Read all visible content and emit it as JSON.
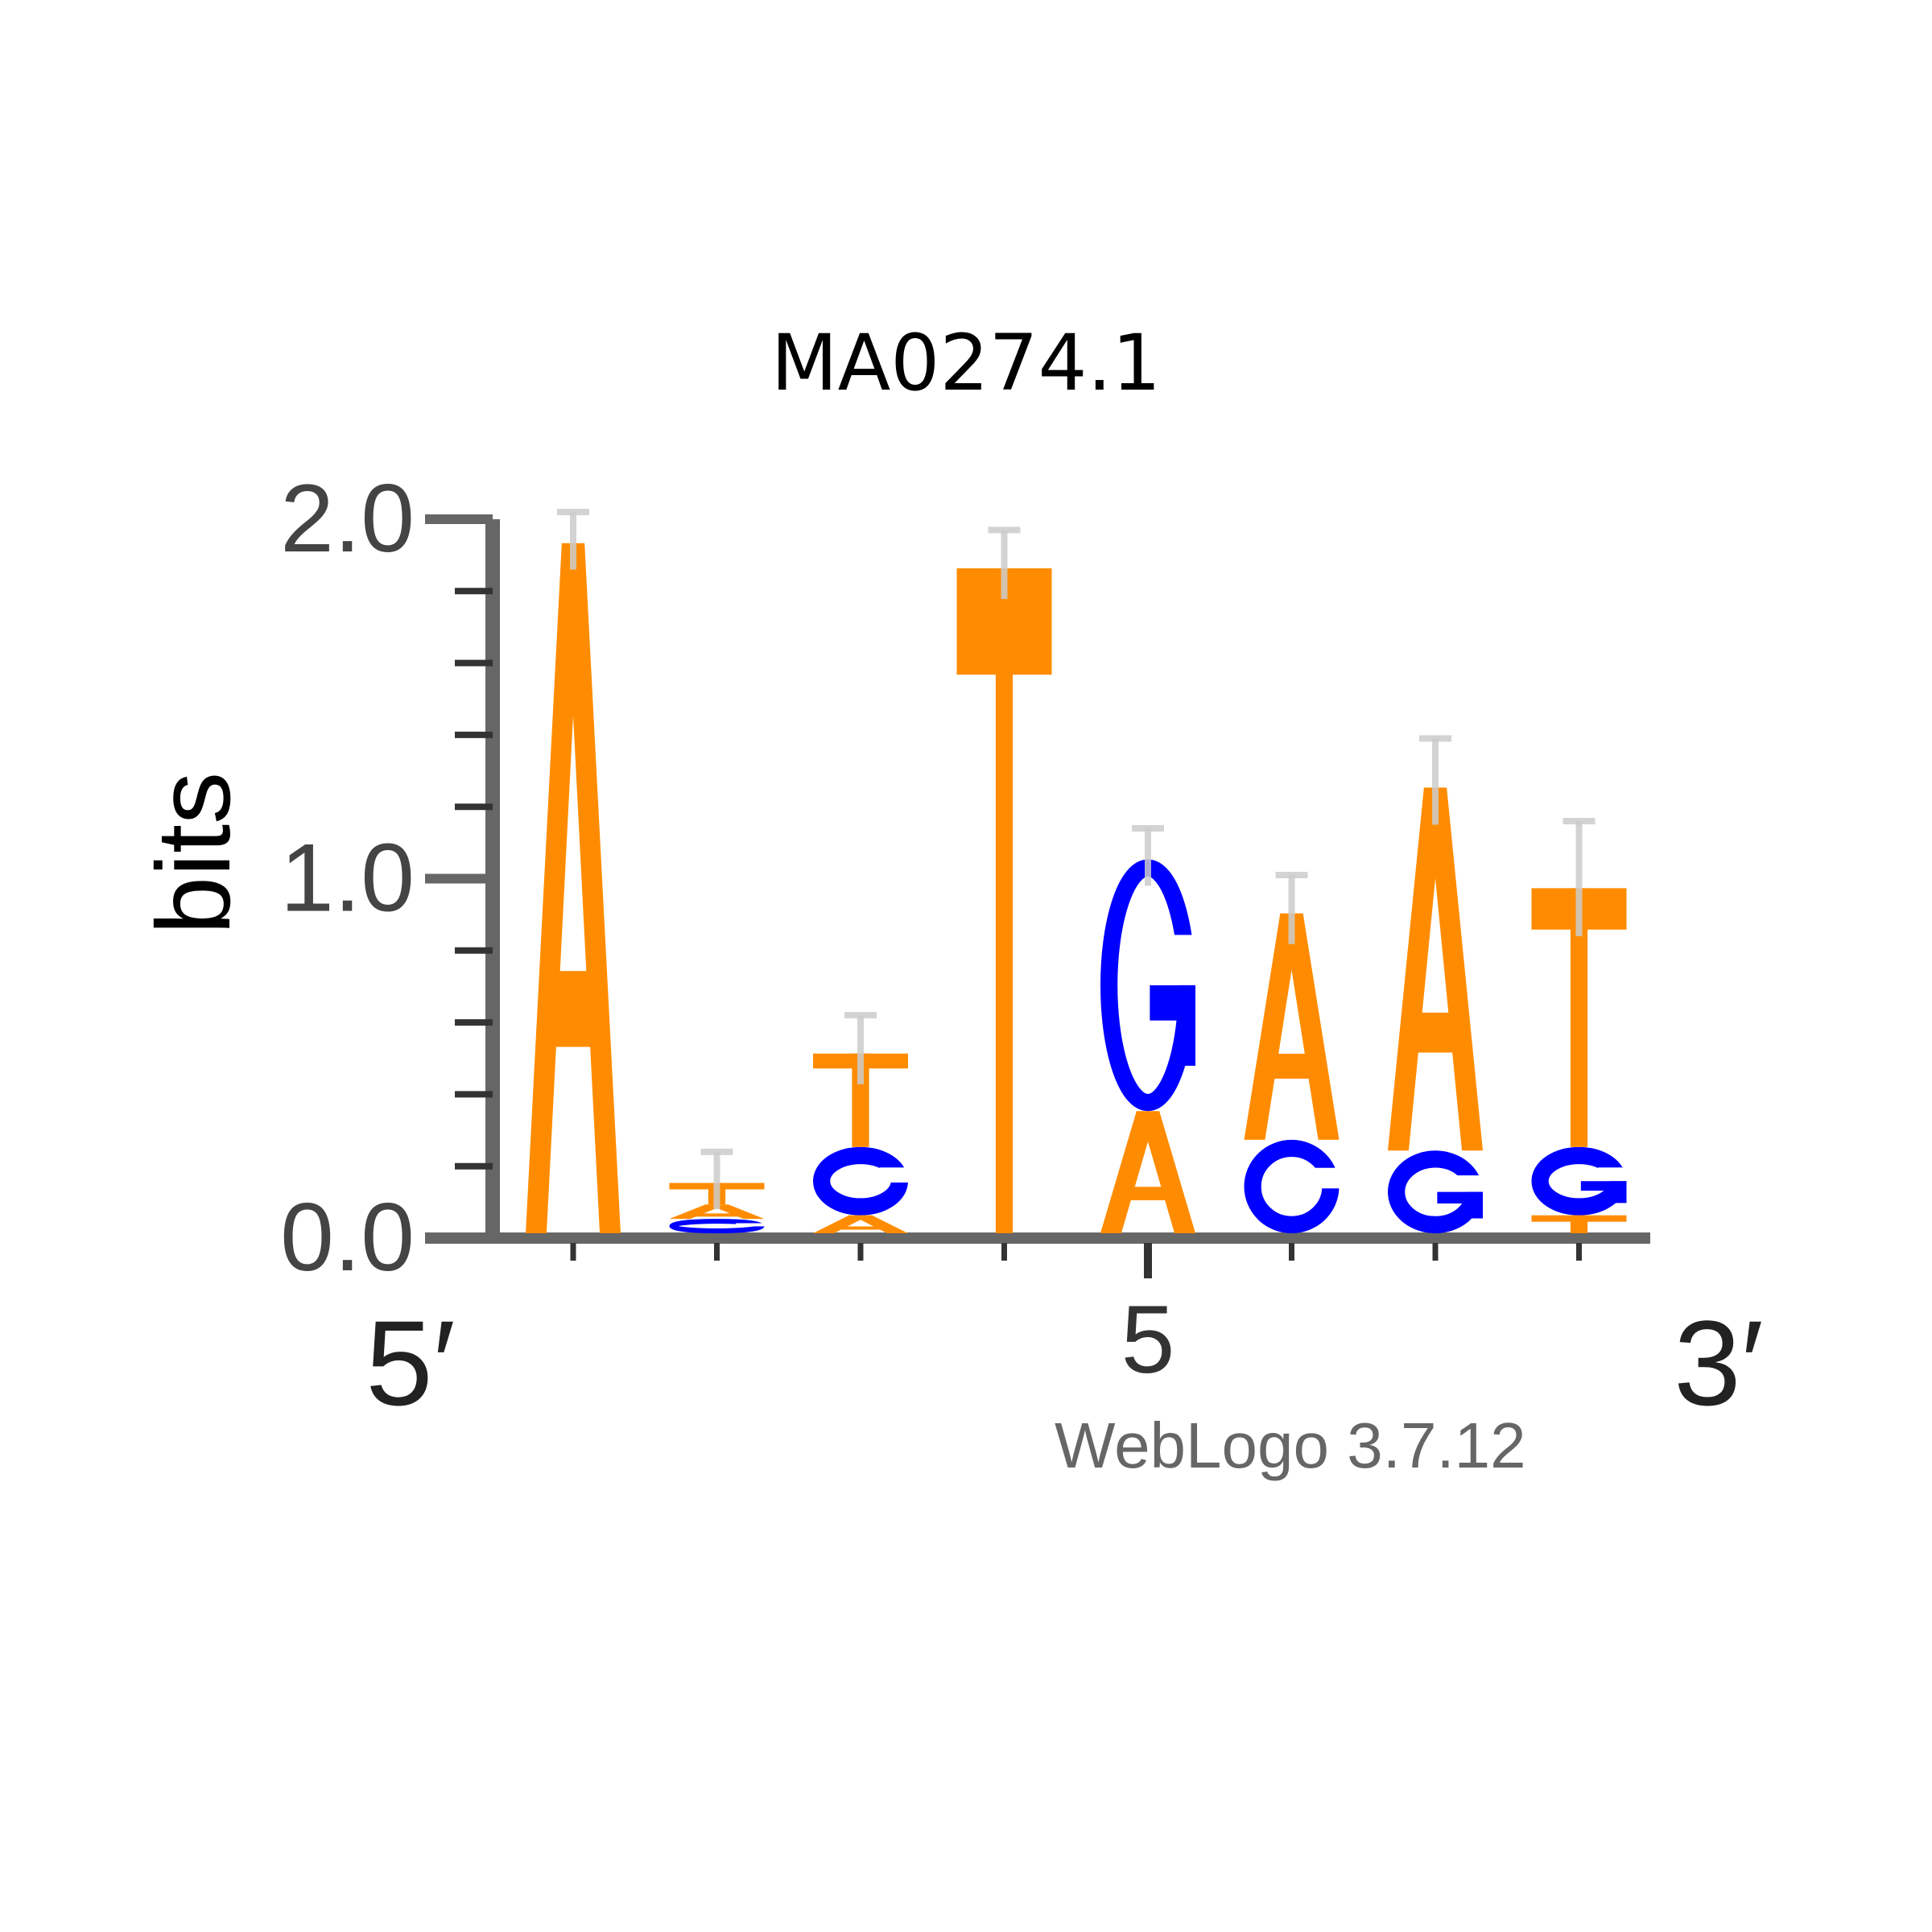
{
  "title": "MA0274.1",
  "credit": "WebLogo 3.7.12",
  "colors": {
    "A": "#ff8c00",
    "C": "#0000ff",
    "G": "#0000ff",
    "T": "#ff8c00",
    "axis": "#666666",
    "errorbar": "#cccccc"
  },
  "chart_data": {
    "type": "sequence-logo",
    "title": "MA0274.1",
    "ylabel": "bits",
    "ylim": [
      0,
      2
    ],
    "yticks": [
      "0.0",
      "1.0",
      "2.0"
    ],
    "x_start_label": "5′",
    "x_end_label": "3′",
    "x_labeled_tick": "5",
    "positions": [
      {
        "pos": 1,
        "letters": [
          {
            "base": "A",
            "bits": 1.92
          }
        ],
        "error": 0.1
      },
      {
        "pos": 2,
        "letters": [
          {
            "base": "C",
            "bits": 0.04
          },
          {
            "base": "A",
            "bits": 0.04
          },
          {
            "base": "T",
            "bits": 0.06
          }
        ],
        "error": 0.1
      },
      {
        "pos": 3,
        "letters": [
          {
            "base": "A",
            "bits": 0.05
          },
          {
            "base": "C",
            "bits": 0.19
          },
          {
            "base": "T",
            "bits": 0.26
          }
        ],
        "error": 0.12
      },
      {
        "pos": 4,
        "letters": [
          {
            "base": "T",
            "bits": 1.85
          }
        ],
        "error": 0.12
      },
      {
        "pos": 5,
        "letters": [
          {
            "base": "A",
            "bits": 0.34
          },
          {
            "base": "G",
            "bits": 0.7
          }
        ],
        "error": 0.1
      },
      {
        "pos": 6,
        "letters": [
          {
            "base": "C",
            "bits": 0.26
          },
          {
            "base": "A",
            "bits": 0.63
          }
        ],
        "error": 0.12
      },
      {
        "pos": 7,
        "letters": [
          {
            "base": "G",
            "bits": 0.23
          },
          {
            "base": "A",
            "bits": 1.01
          }
        ],
        "error": 0.15
      },
      {
        "pos": 8,
        "letters": [
          {
            "base": "T",
            "bits": 0.05
          },
          {
            "base": "G",
            "bits": 0.19
          },
          {
            "base": "T",
            "bits": 0.72
          }
        ],
        "error": 0.2
      }
    ]
  }
}
